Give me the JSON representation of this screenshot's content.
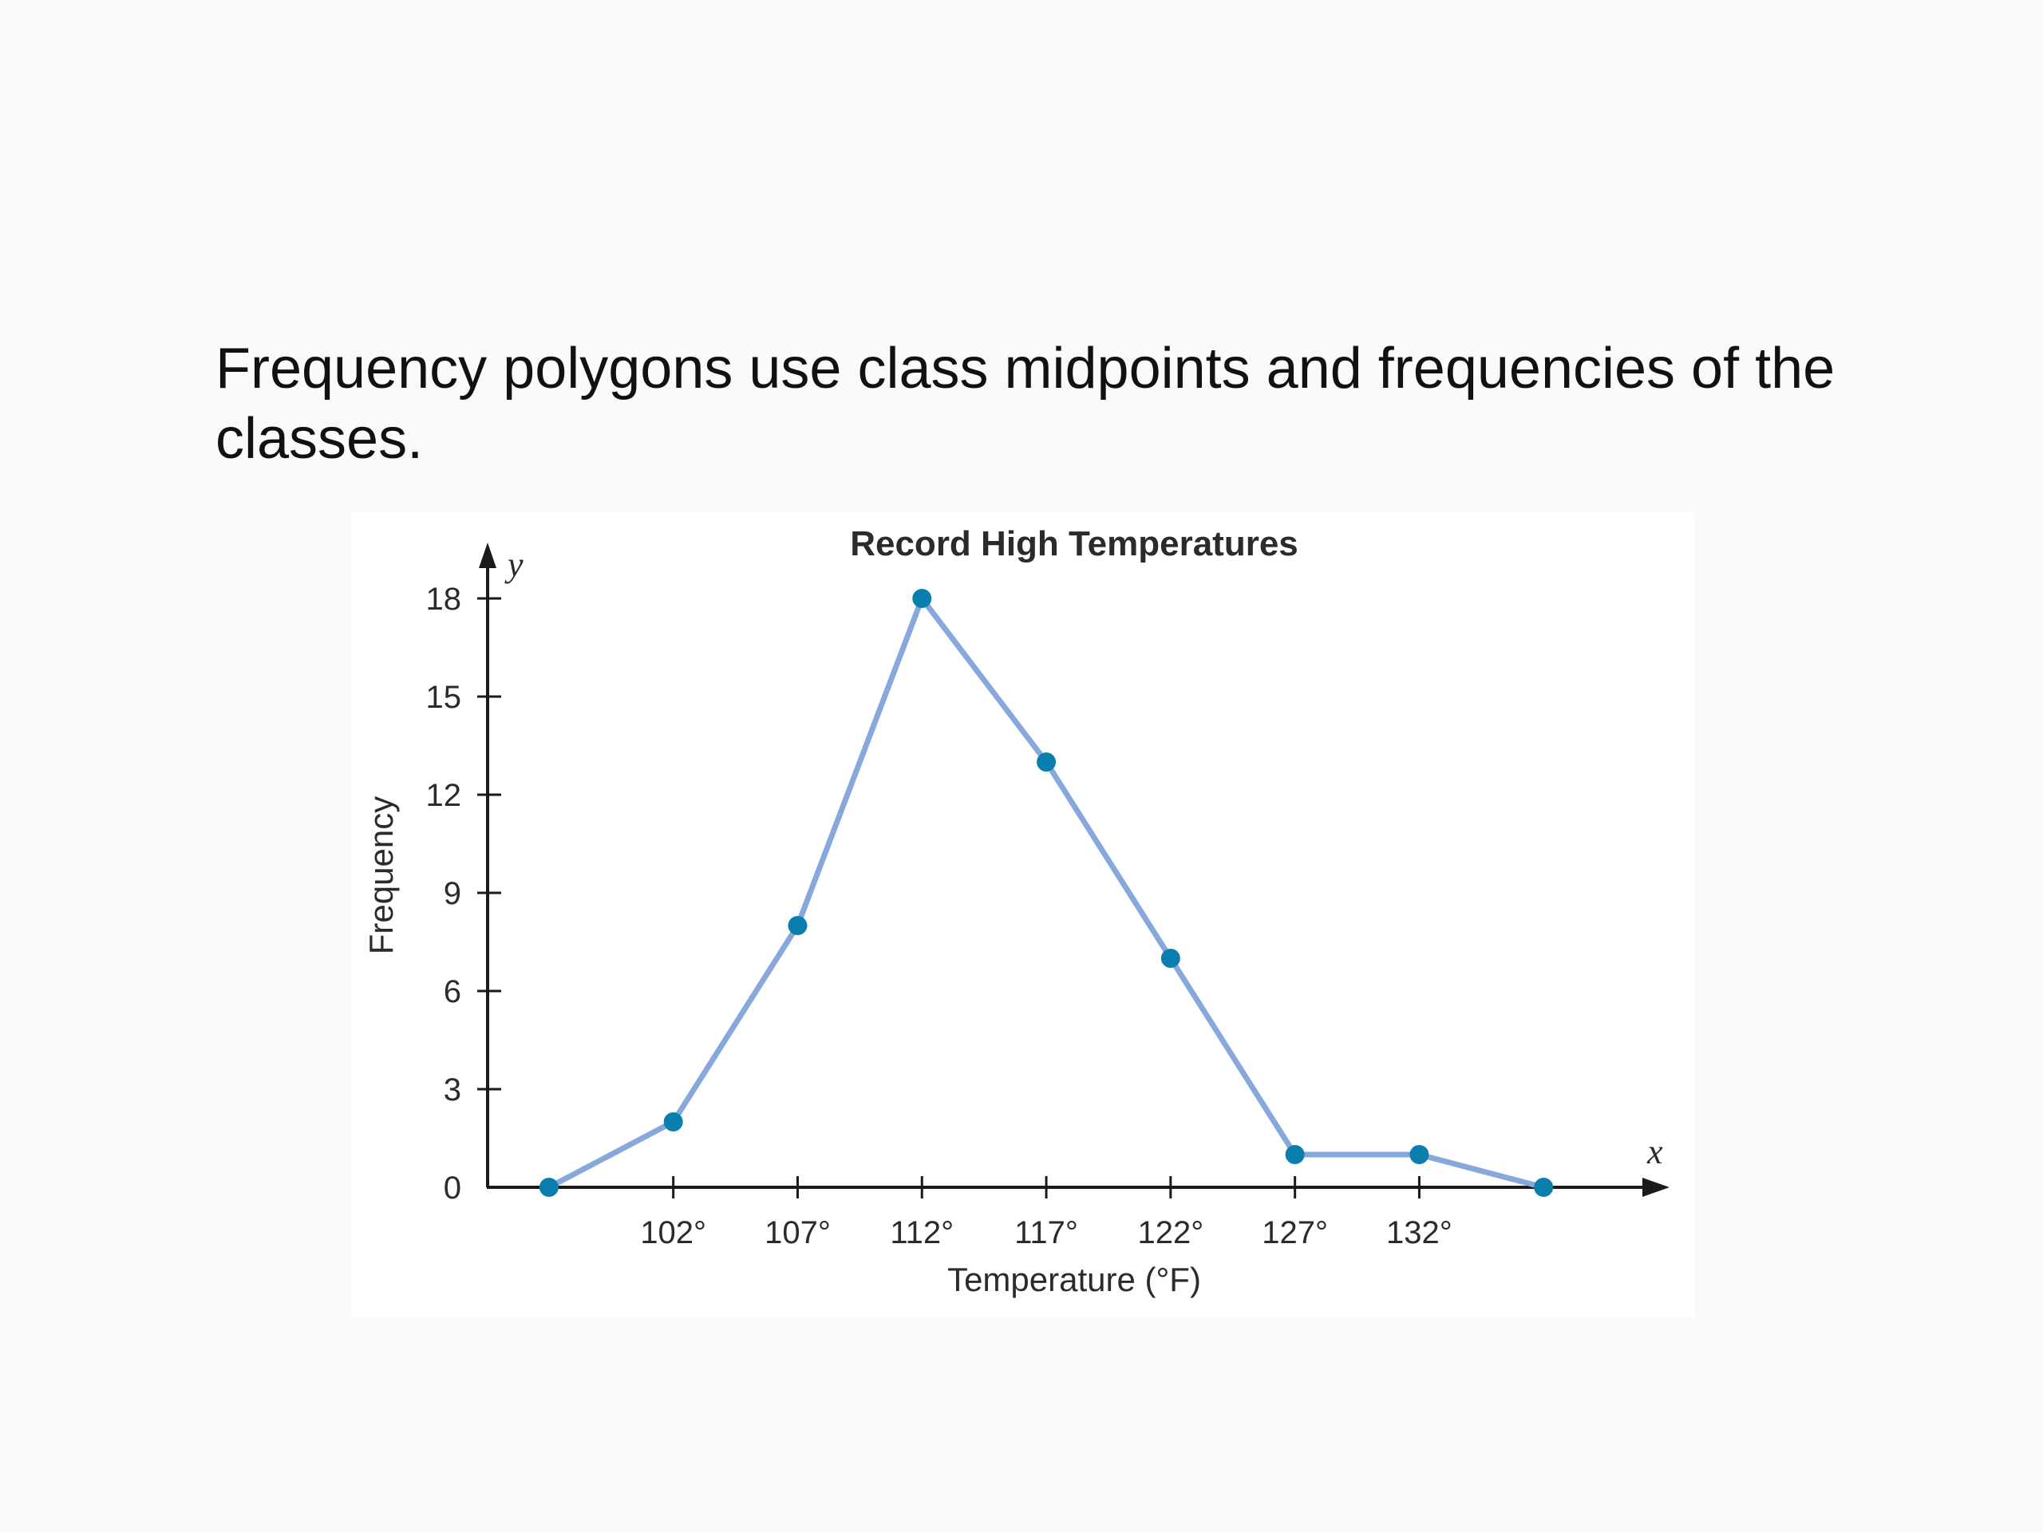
{
  "caption": "Frequency polygons use class midpoints and frequencies of the classes.",
  "chart_data": {
    "type": "line",
    "title": "Record High Temperatures",
    "xlabel": "Temperature (°F)",
    "ylabel": "Frequency",
    "x_axis_letter": "x",
    "y_axis_letter": "y",
    "x": [
      97,
      102,
      107,
      112,
      117,
      122,
      127,
      132,
      137
    ],
    "x_tick_values": [
      102,
      107,
      112,
      117,
      122,
      127,
      132
    ],
    "x_tick_labels": [
      "102°",
      "107°",
      "112°",
      "117°",
      "122°",
      "127°",
      "132°"
    ],
    "y_ticks": [
      0,
      3,
      6,
      9,
      12,
      15,
      18
    ],
    "series": [
      {
        "values": [
          0,
          2,
          8,
          18,
          13,
          7,
          1,
          1,
          0
        ]
      }
    ],
    "xlim": [
      94.5,
      142
    ],
    "ylim": [
      0,
      20
    ],
    "grid": false,
    "colors": {
      "line": "#86a8dc",
      "marker": "#0a7fae",
      "axis": "#1a1a1a"
    }
  }
}
